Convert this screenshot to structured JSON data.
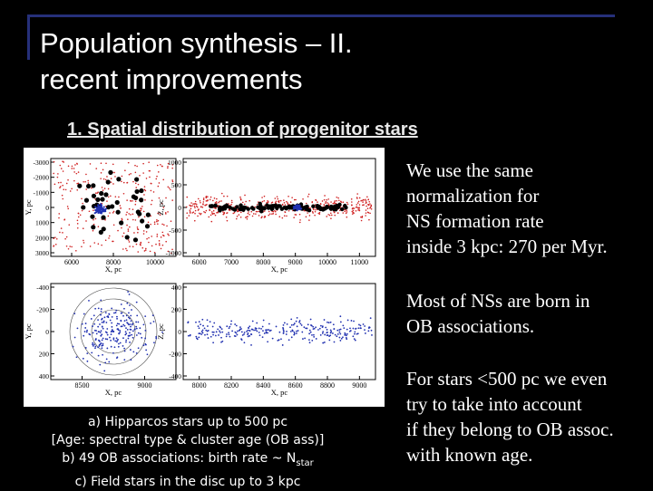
{
  "slide": {
    "title": "Population synthesis – II.\nrecent improvements",
    "subtitle": "1. Spatial distribution of progenitor stars",
    "text_blocks": [
      [
        "We use the same",
        "normalization for",
        "NS formation rate",
        "inside 3 kpc: 270 per Myr."
      ],
      [
        "Most of NSs are born in",
        "OB associations."
      ],
      [
        "For stars <500 pc we even",
        "try to take into account",
        "if they belong to OB assoc.",
        "with known age."
      ]
    ],
    "caption": {
      "line1": "a) Hipparcos stars up to 500 pc",
      "line2": "[Age: spectral type & cluster age (OB ass)]",
      "line3_prefix": "b) 49 OB associations: birth rate ~ N",
      "line3_sub": "star",
      "line4": "c) Field stars in the disc up to 3 kpc"
    }
  },
  "figure": {
    "panels": [
      {
        "id": "tl",
        "xlabel": "X, pc",
        "ylabel": "Y, pc",
        "xticks": [
          "6000",
          "8000",
          "10000"
        ],
        "yticks": [
          "-3000",
          "-2000",
          "-1000",
          "0",
          "1000",
          "2000",
          "3000"
        ]
      },
      {
        "id": "tr",
        "xlabel": "X, pc",
        "ylabel": "Z, pc",
        "xticks": [
          "6000",
          "7000",
          "8000",
          "9000",
          "10000",
          "11000"
        ],
        "yticks": [
          "1000",
          "500",
          "0",
          "-500",
          "-1000"
        ]
      },
      {
        "id": "bl",
        "xlabel": "X, pc",
        "ylabel": "Y, pc",
        "xticks": [
          "8500",
          "9000"
        ],
        "yticks": [
          "-400",
          "-200",
          "0",
          "200",
          "400"
        ]
      },
      {
        "id": "br",
        "xlabel": "X, pc",
        "ylabel": "Z, pc",
        "xticks": [
          "8000",
          "8200",
          "8400",
          "8600",
          "8800",
          "9000"
        ],
        "yticks": [
          "400",
          "200",
          "0",
          "-200",
          "-400"
        ]
      }
    ],
    "colors": {
      "field": "#d02020",
      "ob": "#000000",
      "hip": "#2030b0"
    }
  }
}
